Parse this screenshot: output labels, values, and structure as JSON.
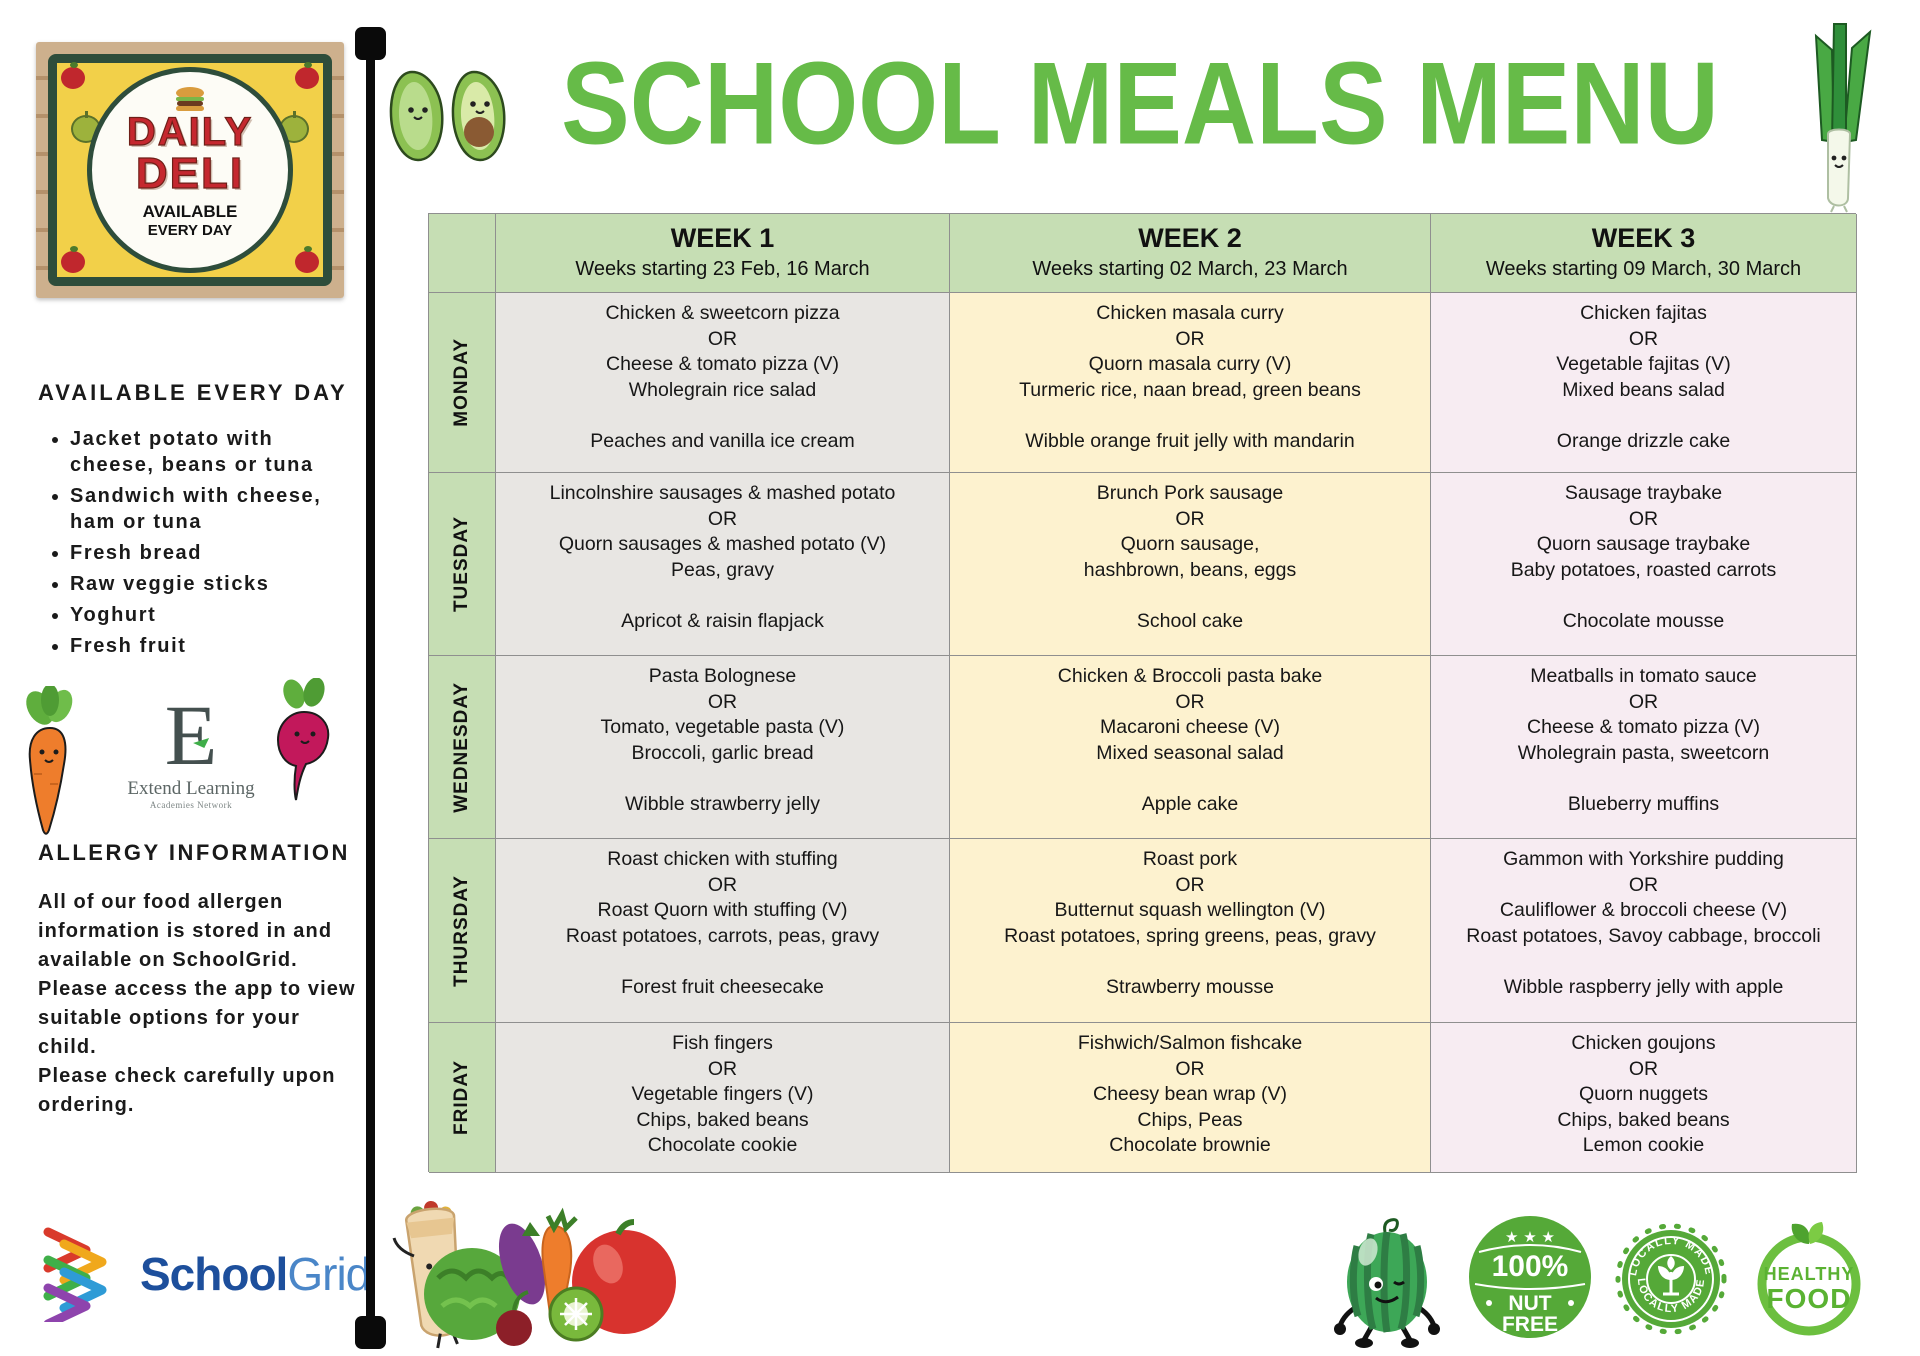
{
  "colors": {
    "title_green": "#66bb48",
    "header_green": "#c6deb4",
    "week1_bg": "#e8e6e3",
    "week2_bg": "#fdf2cf",
    "week3_bg": "#f7ecf2",
    "badge_green": "#55a938",
    "deli_red": "#c5282f",
    "sign_yellow": "#f2d049",
    "sign_frame_green": "#2e4d3b",
    "schoolgrid_navy": "#1d4f9c",
    "schoolgrid_blue": "#4a86c8"
  },
  "title": "SCHOOL MEALS MENU",
  "sidebar": {
    "sign": {
      "title1": "DAILY",
      "title2": "DELI",
      "sub1": "AVAILABLE",
      "sub2": "EVERY DAY"
    },
    "available_heading": "AVAILABLE EVERY DAY",
    "available_items": [
      "Jacket potato with cheese, beans or tuna",
      "Sandwich with cheese, ham or tuna",
      "Fresh bread",
      "Raw veggie sticks",
      "Yoghurt",
      "Fresh fruit"
    ],
    "extend_logo": {
      "initial": "E",
      "line1": "Extend Learning",
      "line2": "Academies Network"
    },
    "allergy_heading": "ALLERGY INFORMATION",
    "allergy_paragraphs": [
      "All of our food allergen information is stored in and available on SchoolGrid.",
      "Please access the app to view suitable options for your child.",
      "Please check carefully upon ordering."
    ]
  },
  "schoolgrid": {
    "word1": "School",
    "word2": "Grid"
  },
  "table": {
    "weeks": [
      {
        "label": "WEEK 1",
        "subtitle": "Weeks starting 23 Feb, 16 March"
      },
      {
        "label": "WEEK 2",
        "subtitle": "Weeks starting 02 March, 23 March"
      },
      {
        "label": "WEEK 3",
        "subtitle": "Weeks starting 09 March, 30 March"
      }
    ],
    "rows": [
      {
        "day": "MONDAY",
        "cells": [
          [
            "Chicken & sweetcorn pizza",
            "OR",
            "Cheese & tomato pizza (V)",
            "Wholegrain rice salad",
            "",
            "Peaches and vanilla ice cream"
          ],
          [
            "Chicken masala curry",
            "OR",
            "Quorn masala curry (V)",
            "Turmeric rice, naan bread, green beans",
            "",
            "Wibble orange fruit jelly with mandarin"
          ],
          [
            "Chicken fajitas",
            "OR",
            "Vegetable fajitas (V)",
            "Mixed beans salad",
            "",
            "Orange drizzle cake"
          ]
        ]
      },
      {
        "day": "TUESDAY",
        "cells": [
          [
            "Lincolnshire sausages & mashed potato",
            "OR",
            "Quorn sausages & mashed potato (V)",
            "Peas, gravy",
            "",
            "Apricot & raisin flapjack"
          ],
          [
            "Brunch Pork sausage",
            "OR",
            "Quorn sausage,",
            "hashbrown, beans, eggs",
            "",
            "School cake"
          ],
          [
            "Sausage traybake",
            "OR",
            "Quorn sausage traybake",
            "Baby potatoes, roasted carrots",
            "",
            "Chocolate mousse"
          ]
        ]
      },
      {
        "day": "WEDNESDAY",
        "cells": [
          [
            "Pasta Bolognese",
            "OR",
            "Tomato, vegetable pasta (V)",
            "Broccoli, garlic bread",
            "",
            "Wibble strawberry jelly"
          ],
          [
            "Chicken & Broccoli pasta bake",
            "OR",
            "Macaroni cheese (V)",
            "Mixed seasonal salad",
            "",
            "Apple cake"
          ],
          [
            "Meatballs in tomato sauce",
            "OR",
            "Cheese & tomato pizza (V)",
            "Wholegrain pasta, sweetcorn",
            "",
            "Blueberry muffins"
          ]
        ]
      },
      {
        "day": "THURSDAY",
        "cells": [
          [
            "Roast chicken with stuffing",
            "OR",
            "Roast Quorn with stuffing (V)",
            "Roast potatoes, carrots, peas, gravy",
            "",
            "Forest fruit cheesecake"
          ],
          [
            "Roast pork",
            "OR",
            "Butternut squash wellington (V)",
            "Roast potatoes, spring greens, peas, gravy",
            "",
            "Strawberry mousse"
          ],
          [
            "Gammon with Yorkshire pudding",
            "OR",
            "Cauliflower & broccoli cheese (V)",
            "Roast potatoes, Savoy cabbage, broccoli",
            "",
            "Wibble raspberry jelly with apple"
          ]
        ]
      },
      {
        "day": "FRIDAY",
        "cells": [
          [
            "Fish fingers",
            "OR",
            "Vegetable fingers (V)",
            "Chips, baked beans",
            "Chocolate cookie"
          ],
          [
            "Fishwich/Salmon fishcake",
            "OR",
            "Cheesy bean wrap (V)",
            "Chips, Peas",
            "Chocolate brownie"
          ],
          [
            "Chicken goujons",
            "OR",
            "Quorn nuggets",
            "Chips, baked beans",
            "Lemon cookie"
          ]
        ]
      }
    ]
  },
  "badges": {
    "nut_free": {
      "value": "100%",
      "word1": "NUT",
      "word2": "FREE"
    },
    "locally_made": {
      "text": "LOCALLY MADE"
    },
    "healthy_food": {
      "word1": "HEALTHY",
      "word2": "FOOD"
    }
  }
}
